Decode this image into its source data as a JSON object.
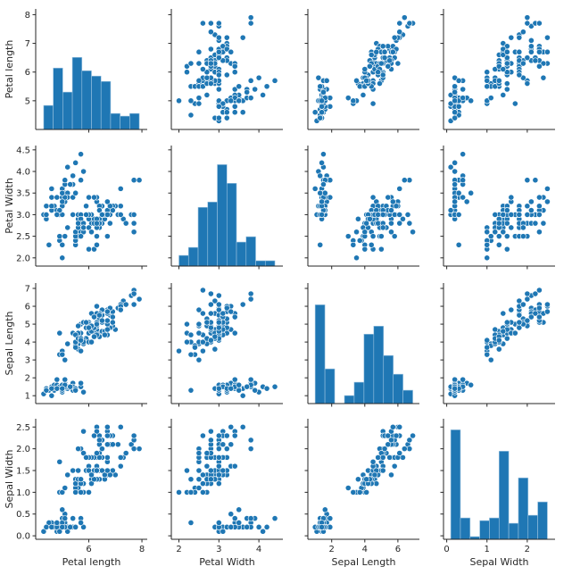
{
  "chart_data": {
    "type": "scatter",
    "layout": "pairplot",
    "diagonal": "histogram",
    "bins": 10,
    "grid": false,
    "color": "#1f77b4",
    "marker_edge_color": "#ffffff",
    "variables": [
      {
        "label": "Petal length",
        "lim": [
          4.0,
          8.2
        ],
        "yticks": [
          5,
          6,
          7,
          8
        ],
        "xticks": [
          6,
          8
        ]
      },
      {
        "label": "Petal Width",
        "lim": [
          1.81,
          4.6
        ],
        "yticks": [
          "2.0",
          "2.5",
          "3.0",
          "3.5",
          "4.0",
          "4.5"
        ],
        "xticks": [
          2,
          3,
          4
        ]
      },
      {
        "label": "Sepal Length",
        "lim": [
          0.56,
          7.3
        ],
        "yticks": [
          1,
          2,
          3,
          4,
          5,
          6,
          7
        ],
        "xticks": [
          2,
          4,
          6
        ]
      },
      {
        "label": "Sepal Width",
        "lim": [
          -0.08,
          2.69
        ],
        "yticks": [
          "0.0",
          "0.5",
          "1.0",
          "1.5",
          "2.0",
          "2.5"
        ],
        "xticks": [
          0,
          1,
          2
        ]
      }
    ],
    "hist_count_max": 43,
    "rows": [
      [
        5.1,
        3.5,
        1.4,
        0.2
      ],
      [
        4.9,
        3.0,
        1.4,
        0.2
      ],
      [
        4.7,
        3.2,
        1.3,
        0.2
      ],
      [
        4.6,
        3.1,
        1.5,
        0.2
      ],
      [
        5.0,
        3.6,
        1.4,
        0.2
      ],
      [
        5.4,
        3.9,
        1.7,
        0.4
      ],
      [
        4.6,
        3.4,
        1.4,
        0.3
      ],
      [
        5.0,
        3.4,
        1.5,
        0.2
      ],
      [
        4.4,
        2.9,
        1.4,
        0.2
      ],
      [
        4.9,
        3.1,
        1.5,
        0.1
      ],
      [
        5.4,
        3.7,
        1.5,
        0.2
      ],
      [
        4.8,
        3.4,
        1.6,
        0.2
      ],
      [
        4.8,
        3.0,
        1.4,
        0.1
      ],
      [
        4.3,
        3.0,
        1.1,
        0.1
      ],
      [
        5.8,
        4.0,
        1.2,
        0.2
      ],
      [
        5.7,
        4.4,
        1.5,
        0.4
      ],
      [
        5.4,
        3.9,
        1.3,
        0.4
      ],
      [
        5.1,
        3.5,
        1.4,
        0.3
      ],
      [
        5.7,
        3.8,
        1.7,
        0.3
      ],
      [
        5.1,
        3.8,
        1.5,
        0.3
      ],
      [
        5.4,
        3.4,
        1.7,
        0.2
      ],
      [
        5.1,
        3.7,
        1.5,
        0.4
      ],
      [
        4.6,
        3.6,
        1.0,
        0.2
      ],
      [
        5.1,
        3.3,
        1.7,
        0.5
      ],
      [
        4.8,
        3.4,
        1.9,
        0.2
      ],
      [
        5.0,
        3.0,
        1.6,
        0.2
      ],
      [
        5.0,
        3.4,
        1.6,
        0.4
      ],
      [
        5.2,
        3.5,
        1.5,
        0.2
      ],
      [
        5.2,
        3.4,
        1.4,
        0.2
      ],
      [
        4.7,
        3.2,
        1.6,
        0.2
      ],
      [
        4.8,
        3.1,
        1.6,
        0.2
      ],
      [
        5.4,
        3.4,
        1.5,
        0.4
      ],
      [
        5.2,
        4.1,
        1.5,
        0.1
      ],
      [
        5.5,
        4.2,
        1.4,
        0.2
      ],
      [
        4.9,
        3.1,
        1.5,
        0.1
      ],
      [
        5.0,
        3.2,
        1.2,
        0.2
      ],
      [
        5.5,
        3.5,
        1.3,
        0.2
      ],
      [
        4.9,
        3.1,
        1.5,
        0.1
      ],
      [
        4.4,
        3.0,
        1.3,
        0.2
      ],
      [
        5.1,
        3.4,
        1.5,
        0.2
      ],
      [
        5.0,
        3.5,
        1.3,
        0.3
      ],
      [
        4.5,
        2.3,
        1.3,
        0.3
      ],
      [
        4.4,
        3.2,
        1.3,
        0.2
      ],
      [
        5.0,
        3.5,
        1.6,
        0.6
      ],
      [
        5.1,
        3.8,
        1.9,
        0.4
      ],
      [
        4.8,
        3.0,
        1.4,
        0.3
      ],
      [
        5.1,
        3.8,
        1.6,
        0.2
      ],
      [
        4.6,
        3.2,
        1.4,
        0.2
      ],
      [
        5.3,
        3.7,
        1.5,
        0.2
      ],
      [
        5.0,
        3.3,
        1.4,
        0.2
      ],
      [
        7.0,
        3.2,
        4.7,
        1.4
      ],
      [
        6.4,
        3.2,
        4.5,
        1.5
      ],
      [
        6.9,
        3.1,
        4.9,
        1.5
      ],
      [
        5.5,
        2.3,
        4.0,
        1.3
      ],
      [
        6.5,
        2.8,
        4.6,
        1.5
      ],
      [
        5.7,
        2.8,
        4.5,
        1.3
      ],
      [
        6.3,
        3.3,
        4.7,
        1.6
      ],
      [
        4.9,
        2.4,
        3.3,
        1.0
      ],
      [
        6.6,
        2.9,
        4.6,
        1.3
      ],
      [
        5.2,
        2.7,
        3.9,
        1.4
      ],
      [
        5.0,
        2.0,
        3.5,
        1.0
      ],
      [
        5.9,
        3.0,
        4.2,
        1.5
      ],
      [
        6.0,
        2.2,
        4.0,
        1.0
      ],
      [
        6.1,
        2.9,
        4.7,
        1.4
      ],
      [
        5.6,
        2.9,
        3.6,
        1.3
      ],
      [
        6.7,
        3.1,
        4.4,
        1.4
      ],
      [
        5.6,
        3.0,
        4.5,
        1.5
      ],
      [
        5.8,
        2.7,
        4.1,
        1.0
      ],
      [
        6.2,
        2.2,
        4.5,
        1.5
      ],
      [
        5.6,
        2.5,
        3.9,
        1.1
      ],
      [
        5.9,
        3.2,
        4.8,
        1.8
      ],
      [
        6.1,
        2.8,
        4.0,
        1.3
      ],
      [
        6.3,
        2.5,
        4.9,
        1.5
      ],
      [
        6.1,
        2.8,
        4.7,
        1.2
      ],
      [
        6.4,
        2.9,
        4.3,
        1.3
      ],
      [
        6.6,
        3.0,
        4.4,
        1.4
      ],
      [
        6.8,
        2.8,
        4.8,
        1.4
      ],
      [
        6.7,
        3.0,
        5.0,
        1.7
      ],
      [
        6.0,
        2.9,
        4.5,
        1.5
      ],
      [
        5.7,
        2.6,
        3.5,
        1.0
      ],
      [
        5.5,
        2.4,
        3.8,
        1.1
      ],
      [
        5.5,
        2.4,
        3.7,
        1.0
      ],
      [
        5.8,
        2.7,
        3.9,
        1.2
      ],
      [
        6.0,
        2.7,
        5.1,
        1.6
      ],
      [
        5.4,
        3.0,
        4.5,
        1.5
      ],
      [
        6.0,
        3.4,
        4.5,
        1.6
      ],
      [
        6.7,
        3.1,
        4.7,
        1.5
      ],
      [
        6.3,
        2.3,
        4.4,
        1.3
      ],
      [
        5.6,
        3.0,
        4.1,
        1.3
      ],
      [
        5.5,
        2.5,
        4.0,
        1.3
      ],
      [
        5.5,
        2.6,
        4.4,
        1.2
      ],
      [
        6.1,
        3.0,
        4.6,
        1.4
      ],
      [
        5.8,
        2.6,
        4.0,
        1.2
      ],
      [
        5.0,
        2.3,
        3.3,
        1.0
      ],
      [
        5.6,
        2.7,
        4.2,
        1.3
      ],
      [
        5.7,
        3.0,
        4.2,
        1.2
      ],
      [
        5.7,
        2.9,
        4.2,
        1.3
      ],
      [
        6.2,
        2.9,
        4.3,
        1.3
      ],
      [
        5.1,
        2.5,
        3.0,
        1.1
      ],
      [
        5.7,
        2.8,
        4.1,
        1.3
      ],
      [
        6.3,
        3.3,
        6.0,
        2.5
      ],
      [
        5.8,
        2.7,
        5.1,
        1.9
      ],
      [
        7.1,
        3.0,
        5.9,
        2.1
      ],
      [
        6.3,
        2.9,
        5.6,
        1.8
      ],
      [
        6.5,
        3.0,
        5.8,
        2.2
      ],
      [
        7.6,
        3.0,
        6.6,
        2.1
      ],
      [
        4.9,
        2.5,
        4.5,
        1.7
      ],
      [
        7.3,
        2.9,
        6.3,
        1.8
      ],
      [
        6.7,
        2.5,
        5.8,
        1.8
      ],
      [
        7.2,
        3.6,
        6.1,
        2.5
      ],
      [
        6.5,
        3.2,
        5.1,
        2.0
      ],
      [
        6.4,
        2.7,
        5.3,
        1.9
      ],
      [
        6.8,
        3.0,
        5.5,
        2.1
      ],
      [
        5.7,
        2.5,
        5.0,
        2.0
      ],
      [
        5.8,
        2.8,
        5.1,
        2.4
      ],
      [
        6.4,
        3.2,
        5.3,
        2.3
      ],
      [
        6.5,
        3.0,
        5.5,
        1.8
      ],
      [
        7.7,
        3.8,
        6.7,
        2.2
      ],
      [
        7.7,
        2.6,
        6.9,
        2.3
      ],
      [
        6.0,
        2.2,
        5.0,
        1.5
      ],
      [
        6.9,
        3.2,
        5.7,
        2.3
      ],
      [
        5.6,
        2.8,
        4.9,
        2.0
      ],
      [
        7.7,
        2.8,
        6.7,
        2.0
      ],
      [
        6.3,
        2.7,
        4.9,
        1.8
      ],
      [
        6.7,
        3.3,
        5.7,
        2.1
      ],
      [
        7.2,
        3.2,
        6.0,
        1.8
      ],
      [
        6.2,
        2.8,
        4.8,
        1.8
      ],
      [
        6.1,
        3.0,
        4.9,
        1.8
      ],
      [
        6.4,
        2.8,
        5.6,
        2.1
      ],
      [
        7.2,
        3.0,
        5.8,
        1.6
      ],
      [
        7.4,
        2.8,
        6.1,
        1.9
      ],
      [
        7.9,
        3.8,
        6.4,
        2.0
      ],
      [
        6.4,
        2.8,
        5.6,
        2.2
      ],
      [
        6.3,
        2.8,
        5.1,
        1.5
      ],
      [
        6.1,
        2.6,
        5.6,
        1.4
      ],
      [
        7.7,
        3.0,
        6.1,
        2.3
      ],
      [
        6.3,
        3.4,
        5.6,
        2.4
      ],
      [
        6.4,
        3.1,
        5.5,
        1.8
      ],
      [
        6.0,
        3.0,
        4.8,
        1.8
      ],
      [
        6.9,
        3.1,
        5.4,
        2.1
      ],
      [
        6.7,
        3.1,
        5.6,
        2.4
      ],
      [
        6.9,
        3.1,
        5.1,
        2.3
      ],
      [
        5.8,
        2.7,
        5.1,
        1.9
      ],
      [
        6.8,
        3.2,
        5.9,
        2.3
      ],
      [
        6.7,
        3.3,
        5.7,
        2.5
      ],
      [
        6.7,
        3.0,
        5.2,
        2.3
      ],
      [
        6.3,
        2.5,
        5.0,
        1.9
      ],
      [
        6.5,
        3.0,
        5.2,
        2.0
      ],
      [
        6.2,
        3.4,
        5.4,
        2.3
      ],
      [
        5.9,
        3.0,
        5.1,
        1.8
      ]
    ]
  }
}
